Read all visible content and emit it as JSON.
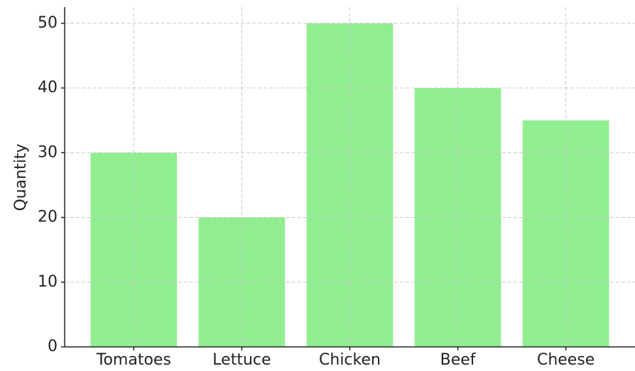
{
  "chart_data": {
    "type": "bar",
    "y_label": "Quantity",
    "categories": [
      "Tomatoes",
      "Lettuce",
      "Chicken",
      "Beef",
      "Cheese"
    ],
    "values": [
      30,
      20,
      50,
      40,
      35
    ],
    "color": "#90ee90",
    "ylim": [
      0,
      52.5
    ],
    "yticks": [
      0,
      10,
      20,
      30,
      40,
      50
    ],
    "grid": true
  }
}
